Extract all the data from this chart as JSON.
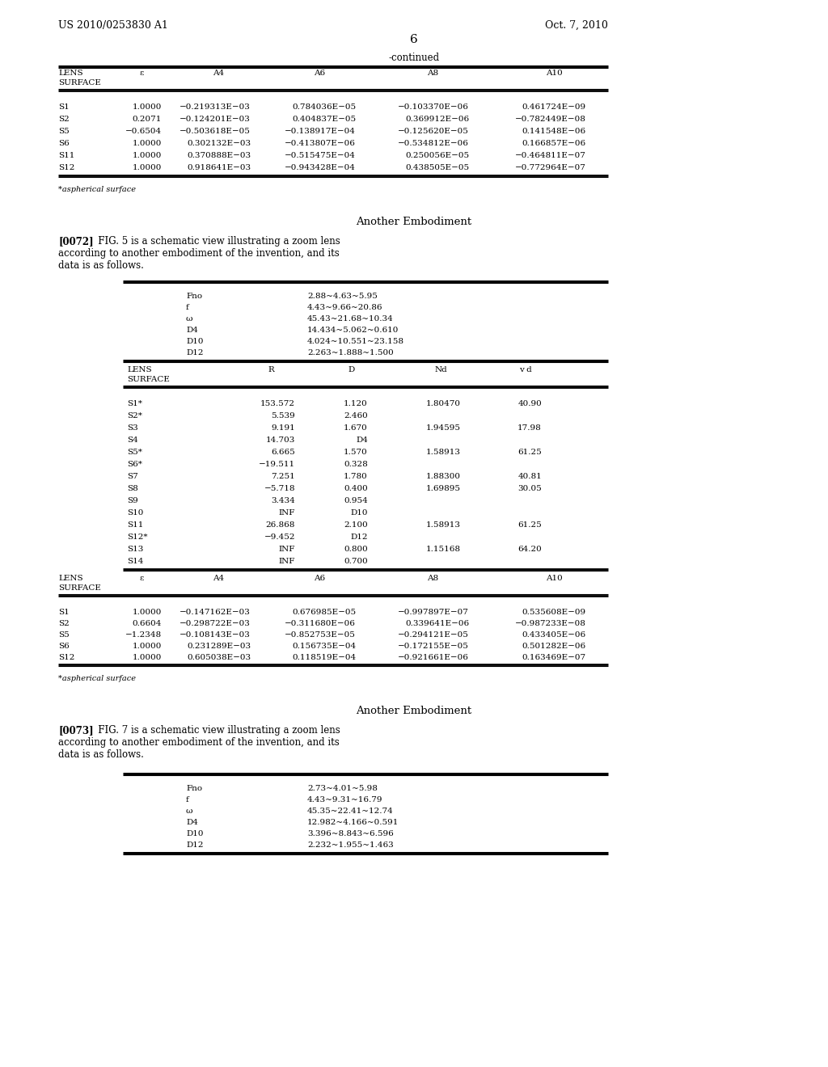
{
  "header_left": "US 2010/0253830 A1",
  "header_right": "Oct. 7, 2010",
  "page_number": "6",
  "background_color": "#ffffff",
  "table1_title": "-continued",
  "table1_rows": [
    [
      "S1",
      "1.0000",
      "−0.219313E−03",
      "0.784036E−05",
      "−0.103370E−06",
      "0.461724E−09"
    ],
    [
      "S2",
      "0.2071",
      "−0.124201E−03",
      "0.404837E−05",
      "0.369912E−06",
      "−0.782449E−08"
    ],
    [
      "S5",
      "−0.6504",
      "−0.503618E−05",
      "−0.138917E−04",
      "−0.125620E−05",
      "0.141548E−06"
    ],
    [
      "S6",
      "1.0000",
      "0.302132E−03",
      "−0.413807E−06",
      "−0.534812E−06",
      "0.166857E−06"
    ],
    [
      "S11",
      "1.0000",
      "0.370888E−03",
      "−0.515475E−04",
      "0.250056E−05",
      "−0.464811E−07"
    ],
    [
      "S12",
      "1.0000",
      "0.918641E−03",
      "−0.943428E−04",
      "0.438505E−05",
      "−0.772964E−07"
    ]
  ],
  "aspherical_note": "*aspherical surface",
  "section_title1": "Another Embodiment",
  "para_0072_bold": "[0072]",
  "para_0072_text": "   FIG. 5 is a schematic view illustrating a zoom lens\naccording to another embodiment of the invention, and its\ndata is as follows.",
  "table2_params": [
    [
      "Fno",
      "2.88~4.63~5.95"
    ],
    [
      "f",
      "4.43~9.66~20.86"
    ],
    [
      "ω",
      "45.43~21.68~10.34"
    ],
    [
      "D4",
      "14.434~5.062~0.610"
    ],
    [
      "D10",
      "4.024~10.551~23.158"
    ],
    [
      "D12",
      "2.263~1.888~1.500"
    ]
  ],
  "table3_rows": [
    [
      "S1*",
      "153.572",
      "1.120",
      "1.80470",
      "40.90"
    ],
    [
      "S2*",
      "5.539",
      "2.460",
      "",
      ""
    ],
    [
      "S3",
      "9.191",
      "1.670",
      "1.94595",
      "17.98"
    ],
    [
      "S4",
      "14.703",
      "D4",
      "",
      ""
    ],
    [
      "S5*",
      "6.665",
      "1.570",
      "1.58913",
      "61.25"
    ],
    [
      "S6*",
      "−19.511",
      "0.328",
      "",
      ""
    ],
    [
      "S7",
      "7.251",
      "1.780",
      "1.88300",
      "40.81"
    ],
    [
      "S8",
      "−5.718",
      "0.400",
      "1.69895",
      "30.05"
    ],
    [
      "S9",
      "3.434",
      "0.954",
      "",
      ""
    ],
    [
      "S10",
      "INF",
      "D10",
      "",
      ""
    ],
    [
      "S11",
      "26.868",
      "2.100",
      "1.58913",
      "61.25"
    ],
    [
      "S12*",
      "−9.452",
      "D12",
      "",
      ""
    ],
    [
      "S13",
      "INF",
      "0.800",
      "1.15168",
      "64.20"
    ],
    [
      "S14",
      "INF",
      "0.700",
      "",
      ""
    ]
  ],
  "table4_rows": [
    [
      "S1",
      "1.0000",
      "−0.147162E−03",
      "0.676985E−05",
      "−0.997897E−07",
      "0.535608E−09"
    ],
    [
      "S2",
      "0.6604",
      "−0.298722E−03",
      "−0.311680E−06",
      "0.339641E−06",
      "−0.987233E−08"
    ],
    [
      "S5",
      "−1.2348",
      "−0.108143E−03",
      "−0.852753E−05",
      "−0.294121E−05",
      "0.433405E−06"
    ],
    [
      "S6",
      "1.0000",
      "0.231289E−03",
      "0.156735E−04",
      "−0.172155E−05",
      "0.501282E−06"
    ],
    [
      "S12",
      "1.0000",
      "0.605038E−03",
      "0.118519E−04",
      "−0.921661E−06",
      "0.163469E−07"
    ]
  ],
  "section_title2": "Another Embodiment",
  "para_0073_bold": "[0073]",
  "para_0073_text": "   FIG. 7 is a schematic view illustrating a zoom lens\naccording to another embodiment of the invention, and its\ndata is as follows.",
  "table5_params": [
    [
      "Fno",
      "2.73~4.01~5.98"
    ],
    [
      "f",
      "4.43~9.31~16.79"
    ],
    [
      "ω",
      "45.35~22.41~12.74"
    ],
    [
      "D4",
      "12.982~4.166~0.591"
    ],
    [
      "D10",
      "3.396~8.843~6.596"
    ],
    [
      "D12",
      "2.232~1.955~1.463"
    ]
  ]
}
